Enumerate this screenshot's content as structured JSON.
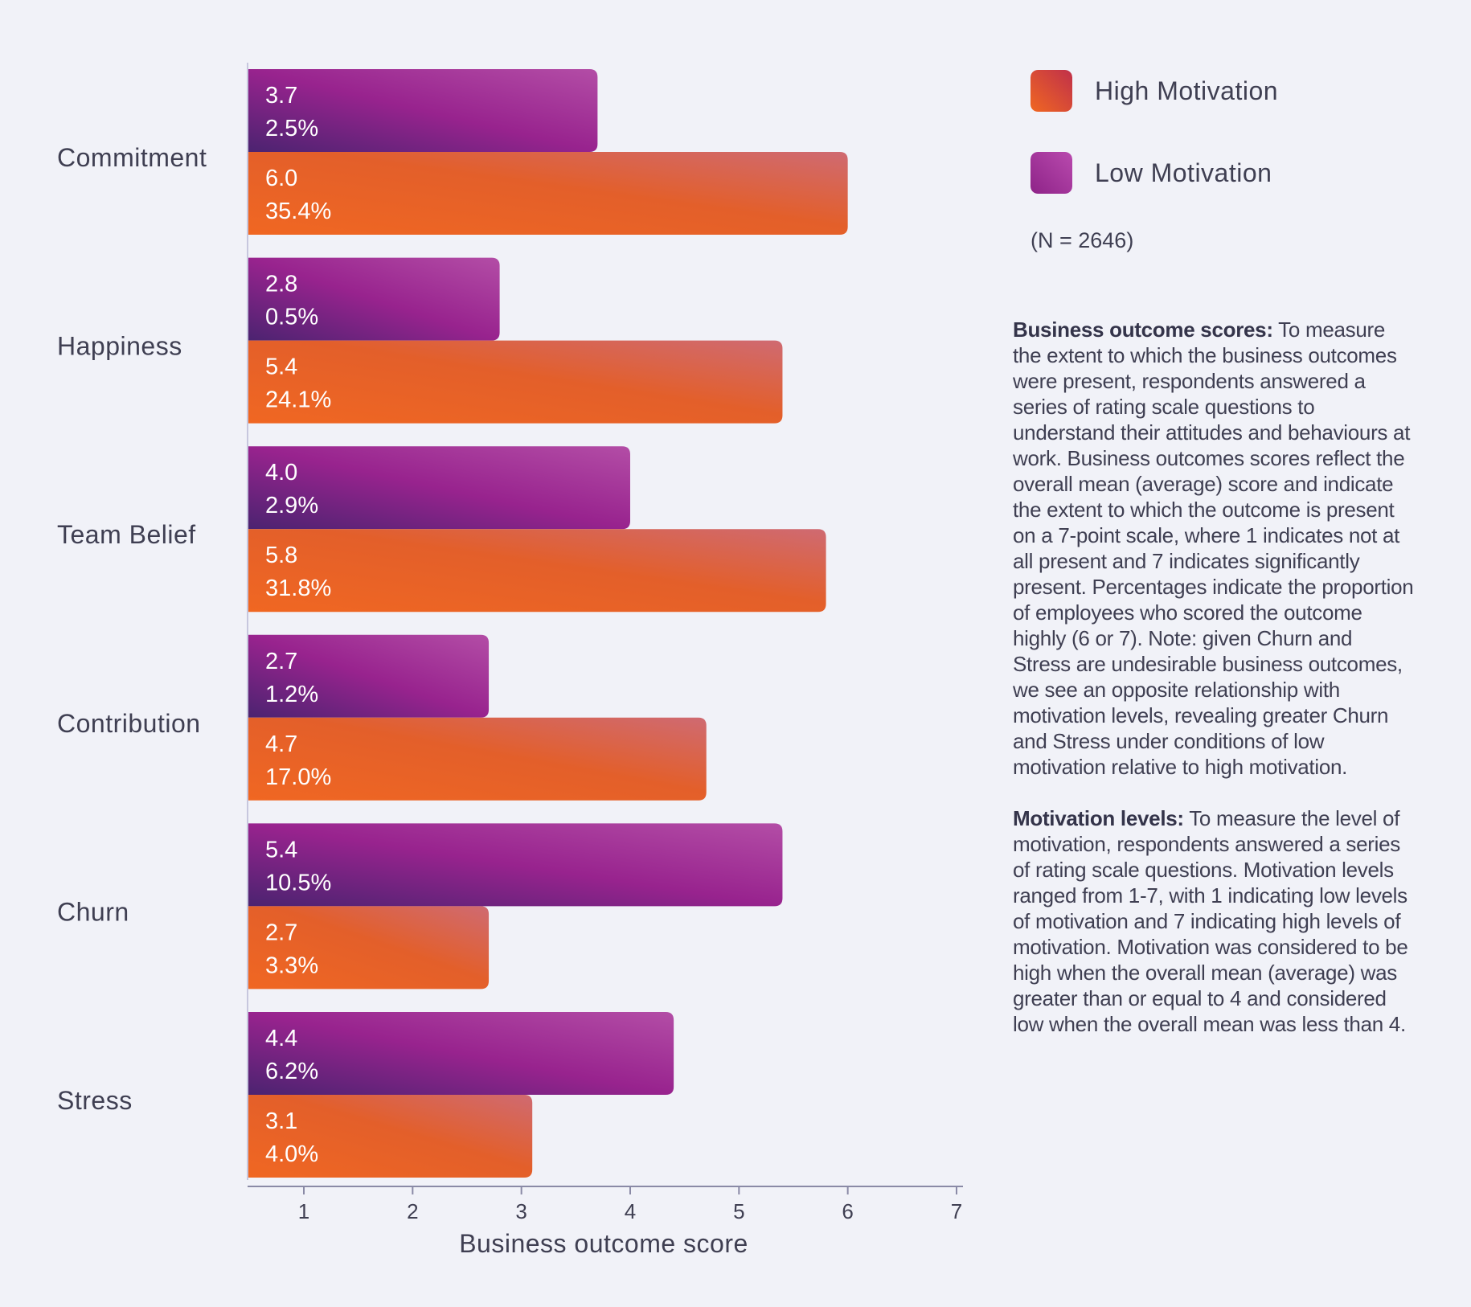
{
  "chart_data": {
    "type": "bar",
    "orientation": "horizontal",
    "categories": [
      "Commitment",
      "Happiness",
      "Team Belief",
      "Contribution",
      "Churn",
      "Stress"
    ],
    "series": [
      {
        "name": "Low Motivation",
        "color": "#a43199",
        "values": [
          3.7,
          2.8,
          4.0,
          2.7,
          5.4,
          4.4
        ],
        "percent_labels": [
          "2.5%",
          "0.5%",
          "2.9%",
          "1.2%",
          "10.5%",
          "6.2%"
        ]
      },
      {
        "name": "High Motivation",
        "color": "#e8622a",
        "values": [
          6.0,
          5.4,
          5.8,
          4.7,
          2.7,
          3.1
        ],
        "percent_labels": [
          "35.4%",
          "24.1%",
          "31.8%",
          "17.0%",
          "3.3%",
          "4.0%"
        ]
      }
    ],
    "value_labels": {
      "Low Motivation": [
        "3.7",
        "2.8",
        "4.0",
        "2.7",
        "5.4",
        "4.4"
      ],
      "High Motivation": [
        "6.0",
        "5.4",
        "5.8",
        "4.7",
        "2.7",
        "3.1"
      ]
    },
    "xlabel": "Business outcome score",
    "ylabel": "",
    "xlim": [
      0.5,
      7
    ],
    "xticks": [
      1,
      2,
      3,
      4,
      5,
      6,
      7
    ],
    "grid": false,
    "legend_position": "top-right"
  },
  "legend": {
    "items": [
      {
        "label": "High Motivation"
      },
      {
        "label": "Low Motivation"
      }
    ]
  },
  "sample_note": "(N = 2646)",
  "notes": {
    "outcome_heading": "Business outcome scores:",
    "outcome_text": "To measure the extent to which the business outcomes were present, respondents answered a series of rating scale questions to understand their attitudes and behaviours at work. Business outcomes scores reflect the overall mean (average) score and indicate the extent to which the outcome is present on a 7-point scale, where 1 indicates not at all present and 7 indicates significantly present. Percentages indicate the proportion of employees who scored the outcome highly (6 or 7). Note: given Churn and Stress are undesirable business outcomes, we see an opposite relationship with motivation levels, revealing greater Churn and Stress under conditions of low motivation relative to high motivation.",
    "motivation_heading": "Motivation levels:",
    "motivation_text": "To measure the level of motivation, respondents answered a series of rating scale questions. Motivation levels ranged from 1-7, with 1 indicating low levels of motivation and 7 indicating high levels of motivation. Motivation was considered to be high when the overall mean (average) was greater than or equal to 4 and considered low when the overall mean was less than 4."
  }
}
